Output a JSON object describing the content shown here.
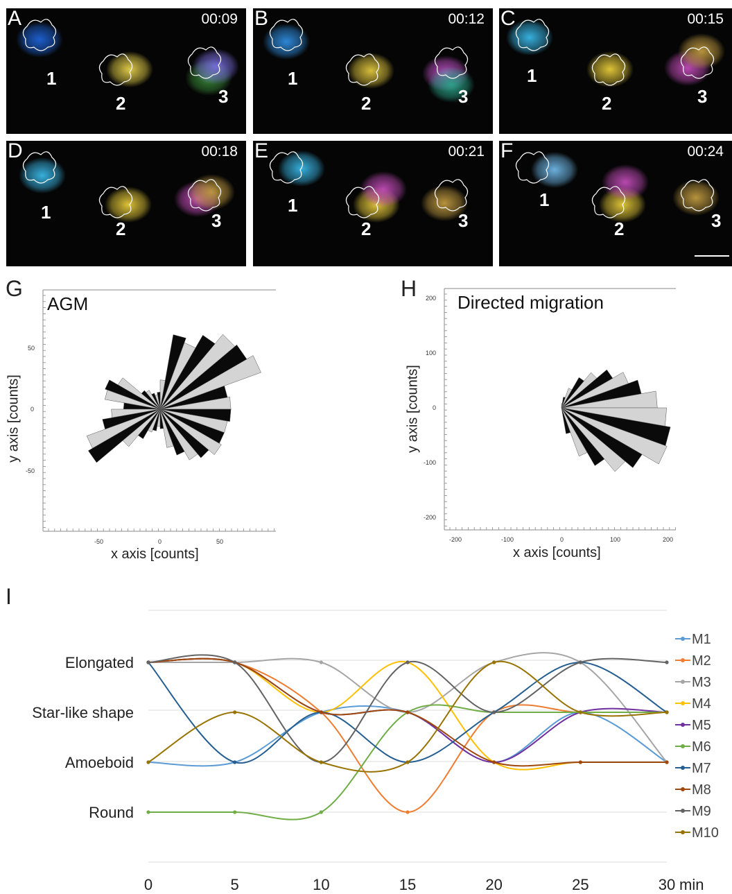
{
  "panels": [
    {
      "label": "A",
      "time": "00:09"
    },
    {
      "label": "B",
      "time": "00:12"
    },
    {
      "label": "C",
      "time": "00:15"
    },
    {
      "label": "D",
      "time": "00:18"
    },
    {
      "label": "E",
      "time": "00:21"
    },
    {
      "label": "F",
      "time": "00:24"
    }
  ],
  "cell_labels": [
    "1",
    "2",
    "3"
  ],
  "rose_g": {
    "figure_label": "G",
    "title": "AGM",
    "xlabel": "x axis [counts]",
    "ylabel": "y axis [counts]",
    "xticks": [
      "-50",
      "0",
      "50"
    ],
    "yticks": [
      "50",
      "0",
      "-50"
    ]
  },
  "rose_h": {
    "figure_label": "H",
    "title": "Directed migration",
    "xlabel": "x axis [counts]",
    "ylabel": "y axis [counts]",
    "xticks": [
      "-200",
      "-100",
      "0",
      "100",
      "200"
    ],
    "yticks": [
      "200",
      "100",
      "0",
      "-100",
      "-200"
    ]
  },
  "panel_i_label": "I",
  "chart_data": [
    {
      "type": "rose",
      "panel": "G",
      "title": "AGM",
      "xlabel": "x axis [counts]",
      "ylabel": "y axis [counts]",
      "xlim": [
        -95,
        95
      ],
      "ylim": [
        -95,
        95
      ],
      "bin_deg": 10,
      "bin_start_deg": [
        0,
        10,
        20,
        30,
        40,
        50,
        60,
        70,
        80,
        90,
        100,
        110,
        120,
        130,
        140,
        150,
        160,
        170,
        180,
        190,
        200,
        210,
        220,
        230,
        240,
        250,
        260,
        270,
        280,
        290,
        300,
        310,
        320,
        330,
        340,
        350
      ],
      "values": [
        58,
        56,
        88,
        82,
        80,
        70,
        58,
        62,
        24,
        14,
        12,
        14,
        18,
        20,
        40,
        48,
        46,
        30,
        40,
        48,
        64,
        68,
        40,
        28,
        20,
        18,
        14,
        16,
        32,
        40,
        48,
        52,
        58,
        56,
        56,
        58
      ],
      "fills": [
        "light",
        "dark"
      ]
    },
    {
      "type": "rose",
      "panel": "H",
      "title": "Directed migration",
      "xlabel": "x axis [counts]",
      "ylabel": "y axis [counts]",
      "xlim": [
        -210,
        210
      ],
      "ylim": [
        -210,
        210
      ],
      "bin_deg": 10,
      "bin_start_deg": [
        0,
        10,
        20,
        30,
        40,
        50,
        60,
        70,
        80,
        280,
        290,
        300,
        310,
        320,
        330,
        340,
        350
      ],
      "values": [
        175,
        148,
        130,
        108,
        84,
        64,
        38,
        20,
        8,
        48,
        94,
        122,
        152,
        170,
        205,
        202,
        192
      ],
      "fills": [
        "light",
        "dark"
      ]
    },
    {
      "type": "line",
      "panel": "I",
      "x": [
        0,
        5,
        10,
        15,
        20,
        25,
        30
      ],
      "x_unit": "min",
      "y_categories": [
        "Round",
        "Amoeboid",
        "Star-like shape",
        "Elongated"
      ],
      "colors": {
        "M1": "#5b9bd5",
        "M2": "#ed7d31",
        "M3": "#a5a5a5",
        "M4": "#ffc000",
        "M5": "#7030a0",
        "M6": "#70ad47",
        "M7": "#255e91",
        "M8": "#9e480e",
        "M9": "#636363",
        "M10": "#997300"
      },
      "series": [
        {
          "name": "M1",
          "values": [
            2,
            2,
            3,
            3,
            2,
            3,
            2
          ]
        },
        {
          "name": "M2",
          "values": [
            4,
            4,
            3,
            1,
            3,
            3,
            3
          ]
        },
        {
          "name": "M3",
          "values": [
            4,
            4,
            4,
            3,
            4,
            4,
            2
          ]
        },
        {
          "name": "M4",
          "values": [
            4,
            4,
            3,
            4,
            2,
            2,
            2
          ]
        },
        {
          "name": "M5",
          "values": [
            4,
            4,
            3,
            3,
            2,
            3,
            3
          ]
        },
        {
          "name": "M6",
          "values": [
            1,
            1,
            1,
            3,
            3,
            3,
            3
          ]
        },
        {
          "name": "M7",
          "values": [
            4,
            2,
            3,
            2,
            3,
            4,
            3
          ]
        },
        {
          "name": "M8",
          "values": [
            4,
            4,
            3,
            3,
            2,
            2,
            2
          ]
        },
        {
          "name": "M9",
          "values": [
            4,
            4,
            2,
            4,
            3,
            4,
            4
          ]
        },
        {
          "name": "M10",
          "values": [
            2,
            3,
            2,
            2,
            4,
            3,
            3
          ]
        }
      ]
    }
  ]
}
